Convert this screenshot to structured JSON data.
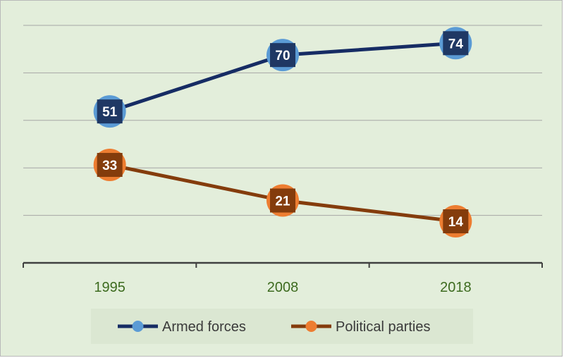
{
  "chart_data": {
    "type": "line",
    "title": "",
    "xlabel": "",
    "ylabel": "",
    "categories": [
      "1995",
      "2008",
      "2018"
    ],
    "ylim": [
      0,
      80
    ],
    "grid": true,
    "legend_position": "bottom",
    "series": [
      {
        "name": "Armed forces",
        "values": [
          51,
          70,
          74
        ],
        "line_color": "#162c64",
        "marker_color": "#5b9bd5",
        "label_color": "#1f3864"
      },
      {
        "name": "Political parties",
        "values": [
          33,
          21,
          14
        ],
        "line_color": "#843c0c",
        "marker_color": "#ed7d31",
        "label_color": "#843c0c"
      }
    ]
  },
  "colors": {
    "background": "#e3eedb",
    "gridline": "#a6a6a6",
    "axis": "#404040",
    "tick_text": "#3d6b1f"
  }
}
